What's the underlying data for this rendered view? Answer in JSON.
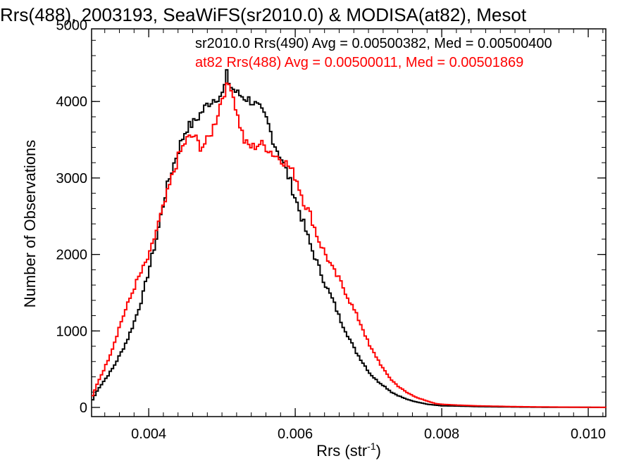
{
  "chart_data": {
    "type": "line",
    "title": "Rrs(488), 2003193, SeaWiFS(sr2010.0) & MODISA(at82), Mesot",
    "xlabel": "Rrs (str",
    "xlabel_sup": "-1",
    "xlabel_close": ")",
    "ylabel": "Number of Observations",
    "xlim": [
      0.00322,
      0.01024
    ],
    "ylim": [
      -120,
      4950
    ],
    "x_ticks": [
      0.004,
      0.006,
      0.008,
      0.01
    ],
    "x_tick_labels": [
      "0.004",
      "0.006",
      "0.008",
      "0.010"
    ],
    "y_ticks": [
      0,
      1000,
      2000,
      3000,
      4000,
      5000
    ],
    "y_tick_labels": [
      "0",
      "1000",
      "2000",
      "3000",
      "4000",
      "5000"
    ],
    "grid": false,
    "legend_position": "top",
    "series": [
      {
        "name": "sr2010.0 Rrs(490) Avg = 0.00500382, Med = 0.00500400",
        "color": "#000000",
        "x": [
          0.00322,
          0.0033,
          0.0034,
          0.0035,
          0.0036,
          0.0037,
          0.0038,
          0.0039,
          0.004,
          0.0041,
          0.0042,
          0.0043,
          0.0044,
          0.0045,
          0.0046,
          0.0047,
          0.0048,
          0.0049,
          0.005,
          0.00505,
          0.0051,
          0.0052,
          0.0053,
          0.0054,
          0.0055,
          0.0056,
          0.0057,
          0.0058,
          0.0059,
          0.006,
          0.0061,
          0.0062,
          0.0063,
          0.0064,
          0.0065,
          0.0066,
          0.0067,
          0.0068,
          0.0069,
          0.007,
          0.0071,
          0.0072,
          0.0073,
          0.0074,
          0.0075,
          0.0076,
          0.0077,
          0.0078,
          0.0079,
          0.008,
          0.0082,
          0.0085,
          0.009,
          0.0095,
          0.01,
          0.01024
        ],
        "y": [
          100,
          250,
          380,
          520,
          700,
          900,
          1150,
          1450,
          1850,
          2250,
          2750,
          3100,
          3400,
          3650,
          3720,
          3850,
          3980,
          4050,
          4100,
          4350,
          4200,
          4100,
          4050,
          4000,
          3900,
          3750,
          3450,
          3250,
          3000,
          2700,
          2400,
          2100,
          1850,
          1600,
          1400,
          1150,
          950,
          750,
          600,
          450,
          350,
          280,
          200,
          150,
          110,
          80,
          60,
          40,
          30,
          20,
          18,
          10,
          5,
          2,
          1,
          0
        ]
      },
      {
        "name": "at82 Rrs(488) Avg = 0.00500011, Med = 0.00501869",
        "color": "#ff0000",
        "x": [
          0.00322,
          0.0033,
          0.0034,
          0.0035,
          0.0036,
          0.0037,
          0.0038,
          0.0039,
          0.004,
          0.0041,
          0.0042,
          0.0043,
          0.0044,
          0.0045,
          0.0046,
          0.0047,
          0.0048,
          0.0049,
          0.005,
          0.0051,
          0.0052,
          0.0053,
          0.0054,
          0.0055,
          0.0056,
          0.0057,
          0.0058,
          0.0059,
          0.006,
          0.0061,
          0.0062,
          0.0063,
          0.0064,
          0.0065,
          0.0066,
          0.0067,
          0.0068,
          0.0069,
          0.007,
          0.0071,
          0.0072,
          0.0073,
          0.0074,
          0.0075,
          0.0076,
          0.0077,
          0.0078,
          0.0079,
          0.008,
          0.0082,
          0.0085,
          0.009,
          0.0095,
          0.01,
          0.01024
        ],
        "y": [
          150,
          350,
          550,
          800,
          1100,
          1350,
          1600,
          1800,
          2000,
          2350,
          2650,
          3000,
          3300,
          3500,
          3550,
          3400,
          3500,
          3750,
          4100,
          4250,
          3800,
          3450,
          3400,
          3450,
          3400,
          3300,
          3250,
          3150,
          3000,
          2700,
          2500,
          2200,
          2000,
          1800,
          1650,
          1450,
          1250,
          1050,
          800,
          650,
          480,
          360,
          270,
          200,
          150,
          110,
          80,
          50,
          40,
          30,
          20,
          10,
          5,
          2,
          0
        ]
      }
    ]
  }
}
